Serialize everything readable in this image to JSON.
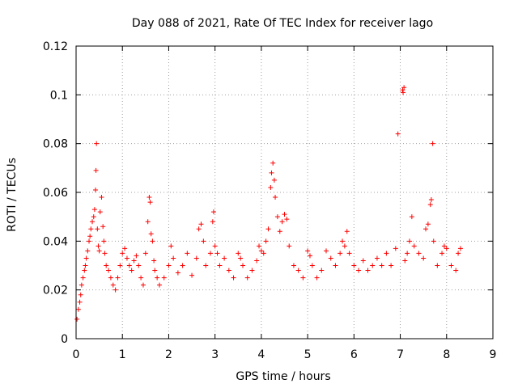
{
  "chart_data": {
    "type": "scatter",
    "title": "Day 088 of 2021, Rate Of TEC Index for receiver lago",
    "xlabel": "GPS time / hours",
    "ylabel": "ROTI / TECUs",
    "xlim": [
      0,
      9
    ],
    "ylim": [
      0,
      0.12
    ],
    "x_ticks": [
      "0",
      "1",
      "2",
      "3",
      "4",
      "5",
      "6",
      "7",
      "8",
      "9"
    ],
    "y_ticks": [
      "0",
      "0.02",
      "0.04",
      "0.06",
      "0.08",
      "0.1",
      "0.12"
    ],
    "grid": true,
    "marker": "+",
    "color": "#ff0000",
    "series": [
      {
        "values": [
          [
            0.02,
            0.008
          ],
          [
            0.05,
            0.012
          ],
          [
            0.08,
            0.015
          ],
          [
            0.1,
            0.018
          ],
          [
            0.12,
            0.022
          ],
          [
            0.15,
            0.025
          ],
          [
            0.18,
            0.028
          ],
          [
            0.2,
            0.03
          ],
          [
            0.22,
            0.033
          ],
          [
            0.25,
            0.036
          ],
          [
            0.28,
            0.04
          ],
          [
            0.3,
            0.042
          ],
          [
            0.32,
            0.045
          ],
          [
            0.35,
            0.048
          ],
          [
            0.38,
            0.05
          ],
          [
            0.4,
            0.053
          ],
          [
            0.42,
            0.061
          ],
          [
            0.43,
            0.069
          ],
          [
            0.44,
            0.08
          ],
          [
            0.46,
            0.045
          ],
          [
            0.48,
            0.038
          ],
          [
            0.5,
            0.036
          ],
          [
            0.52,
            0.052
          ],
          [
            0.55,
            0.058
          ],
          [
            0.58,
            0.046
          ],
          [
            0.6,
            0.04
          ],
          [
            0.62,
            0.035
          ],
          [
            0.65,
            0.03
          ],
          [
            0.7,
            0.028
          ],
          [
            0.75,
            0.025
          ],
          [
            0.8,
            0.022
          ],
          [
            0.85,
            0.02
          ],
          [
            0.9,
            0.025
          ],
          [
            0.95,
            0.03
          ],
          [
            1.0,
            0.035
          ],
          [
            1.05,
            0.037
          ],
          [
            1.1,
            0.033
          ],
          [
            1.15,
            0.03
          ],
          [
            1.2,
            0.028
          ],
          [
            1.25,
            0.032
          ],
          [
            1.3,
            0.034
          ],
          [
            1.35,
            0.03
          ],
          [
            1.4,
            0.025
          ],
          [
            1.45,
            0.022
          ],
          [
            1.5,
            0.035
          ],
          [
            1.55,
            0.048
          ],
          [
            1.58,
            0.058
          ],
          [
            1.6,
            0.056
          ],
          [
            1.62,
            0.043
          ],
          [
            1.65,
            0.04
          ],
          [
            1.68,
            0.032
          ],
          [
            1.7,
            0.028
          ],
          [
            1.75,
            0.025
          ],
          [
            1.8,
            0.022
          ],
          [
            1.9,
            0.025
          ],
          [
            2.0,
            0.03
          ],
          [
            2.05,
            0.038
          ],
          [
            2.1,
            0.033
          ],
          [
            2.2,
            0.027
          ],
          [
            2.3,
            0.03
          ],
          [
            2.4,
            0.035
          ],
          [
            2.5,
            0.026
          ],
          [
            2.6,
            0.033
          ],
          [
            2.65,
            0.045
          ],
          [
            2.7,
            0.047
          ],
          [
            2.75,
            0.04
          ],
          [
            2.8,
            0.03
          ],
          [
            2.9,
            0.035
          ],
          [
            2.95,
            0.048
          ],
          [
            2.97,
            0.052
          ],
          [
            3.0,
            0.038
          ],
          [
            3.05,
            0.035
          ],
          [
            3.1,
            0.03
          ],
          [
            3.2,
            0.033
          ],
          [
            3.3,
            0.028
          ],
          [
            3.4,
            0.025
          ],
          [
            3.5,
            0.035
          ],
          [
            3.55,
            0.033
          ],
          [
            3.6,
            0.03
          ],
          [
            3.7,
            0.025
          ],
          [
            3.8,
            0.028
          ],
          [
            3.9,
            0.032
          ],
          [
            3.95,
            0.038
          ],
          [
            4.0,
            0.036
          ],
          [
            4.05,
            0.035
          ],
          [
            4.1,
            0.04
          ],
          [
            4.15,
            0.045
          ],
          [
            4.2,
            0.062
          ],
          [
            4.22,
            0.068
          ],
          [
            4.25,
            0.072
          ],
          [
            4.28,
            0.065
          ],
          [
            4.3,
            0.058
          ],
          [
            4.35,
            0.05
          ],
          [
            4.4,
            0.044
          ],
          [
            4.45,
            0.048
          ],
          [
            4.5,
            0.051
          ],
          [
            4.55,
            0.049
          ],
          [
            4.6,
            0.038
          ],
          [
            4.7,
            0.03
          ],
          [
            4.8,
            0.028
          ],
          [
            4.9,
            0.025
          ],
          [
            5.0,
            0.036
          ],
          [
            5.05,
            0.034
          ],
          [
            5.1,
            0.03
          ],
          [
            5.2,
            0.025
          ],
          [
            5.3,
            0.028
          ],
          [
            5.4,
            0.036
          ],
          [
            5.5,
            0.033
          ],
          [
            5.6,
            0.03
          ],
          [
            5.7,
            0.035
          ],
          [
            5.75,
            0.04
          ],
          [
            5.8,
            0.038
          ],
          [
            5.85,
            0.044
          ],
          [
            5.9,
            0.035
          ],
          [
            6.0,
            0.03
          ],
          [
            6.1,
            0.028
          ],
          [
            6.2,
            0.032
          ],
          [
            6.3,
            0.028
          ],
          [
            6.4,
            0.03
          ],
          [
            6.5,
            0.033
          ],
          [
            6.6,
            0.03
          ],
          [
            6.7,
            0.035
          ],
          [
            6.8,
            0.03
          ],
          [
            6.9,
            0.037
          ],
          [
            6.95,
            0.084
          ],
          [
            7.05,
            0.102
          ],
          [
            7.06,
            0.101
          ],
          [
            7.08,
            0.103
          ],
          [
            7.1,
            0.032
          ],
          [
            7.15,
            0.035
          ],
          [
            7.2,
            0.04
          ],
          [
            7.25,
            0.05
          ],
          [
            7.3,
            0.038
          ],
          [
            7.4,
            0.035
          ],
          [
            7.5,
            0.033
          ],
          [
            7.55,
            0.045
          ],
          [
            7.6,
            0.047
          ],
          [
            7.65,
            0.055
          ],
          [
            7.67,
            0.057
          ],
          [
            7.7,
            0.08
          ],
          [
            7.72,
            0.04
          ],
          [
            7.8,
            0.03
          ],
          [
            7.9,
            0.035
          ],
          [
            7.95,
            0.038
          ],
          [
            8.0,
            0.037
          ],
          [
            8.1,
            0.03
          ],
          [
            8.2,
            0.028
          ],
          [
            8.25,
            0.035
          ],
          [
            8.3,
            0.037
          ]
        ]
      }
    ]
  }
}
